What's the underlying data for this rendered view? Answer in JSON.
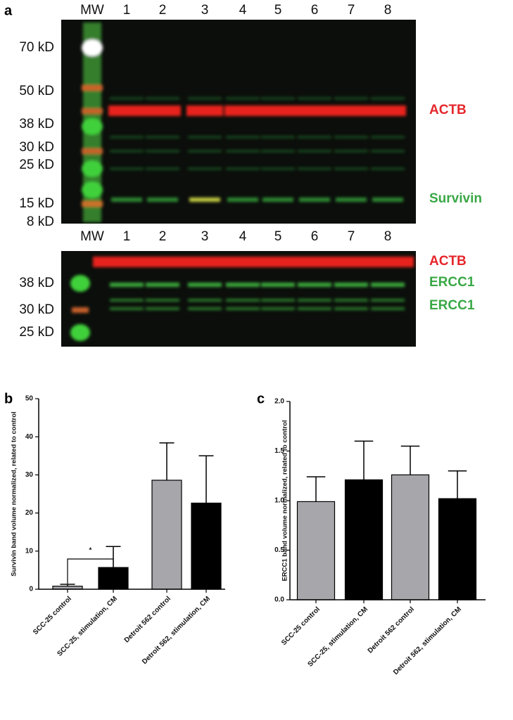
{
  "panel_labels": [
    "a",
    "b",
    "c"
  ],
  "blots": [
    {
      "lanes": [
        "MW",
        "1",
        "2",
        "3",
        "4",
        "5",
        "6",
        "7",
        "8"
      ],
      "markers": [
        "70 kD",
        "50 kD",
        "38 kD",
        "30 kD",
        "25 kD",
        "15 kD",
        "8 kD"
      ],
      "targets": [
        {
          "label": "ACTB",
          "color": "#e5262b"
        },
        {
          "label": "Survivin",
          "color": "#3aa846"
        }
      ]
    },
    {
      "lanes": [
        "MW",
        "1",
        "2",
        "3",
        "4",
        "5",
        "6",
        "7",
        "8"
      ],
      "markers": [
        "38 kD",
        "30 kD",
        "25 kD"
      ],
      "targets": [
        {
          "label": "ACTB",
          "color": "#e5262b"
        },
        {
          "label": "ERCC1",
          "color": "#3aa846"
        },
        {
          "label": "ERCC1",
          "color": "#3aa846"
        }
      ]
    }
  ],
  "chart_data": [
    {
      "type": "bar",
      "y_label": "Survivin band volume normalized, related to control",
      "categories": [
        "SCC-25 control",
        "SCC-25, stimulation, CM",
        "Detroit 562 control",
        "Detroit 562, stimulation, CM"
      ],
      "values": [
        0.8,
        5.7,
        28.6,
        22.6
      ],
      "errors": [
        0.5,
        5.5,
        9.8,
        12.4
      ],
      "colors": [
        "#a7a7ab",
        "#000000",
        "#a7a7ab",
        "#000000"
      ],
      "ylim": [
        0,
        50
      ],
      "yticks": [
        0,
        10,
        20,
        30,
        40,
        50
      ],
      "annotations": [
        {
          "text": "*"
        }
      ]
    },
    {
      "type": "bar",
      "y_label": "ERCC1 band volume normalized, related to control",
      "categories": [
        "SCC-25 control",
        "SCC-25, stimulation, CM",
        "Detroit 562 control",
        "Detroit 562, stimulation, CM"
      ],
      "values": [
        0.99,
        1.21,
        1.26,
        1.02
      ],
      "errors": [
        0.25,
        0.39,
        0.29,
        0.28
      ],
      "colors": [
        "#a7a7ab",
        "#000000",
        "#a7a7ab",
        "#000000"
      ],
      "ylim": [
        0,
        2
      ],
      "yticks": [
        {
          "value": 0,
          "label": "0.0"
        },
        0.5,
        {
          "value": 1,
          "label": "1.0"
        },
        1.5,
        {
          "value": 2,
          "label": "2.0"
        }
      ]
    }
  ]
}
